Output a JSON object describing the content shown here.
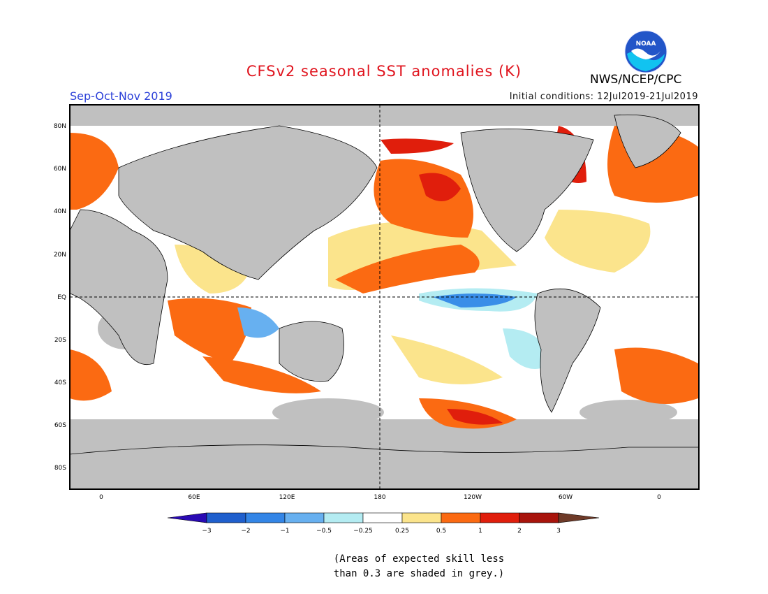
{
  "header": {
    "title": "CFSv2 seasonal SST anomalies (K)",
    "season": "Sep-Oct-Nov 2019",
    "initial_conditions": "Initial conditions: 12Jul2019-21Jul2019",
    "agency": "NWS/NCEP/CPC",
    "logo_text": "NOAA"
  },
  "map": {
    "lat_labels": [
      "80N",
      "60N",
      "40N",
      "20N",
      "EQ",
      "20S",
      "40S",
      "60S",
      "80S"
    ],
    "lon_labels": [
      "0",
      "60E",
      "120E",
      "180",
      "120W",
      "60W",
      "0"
    ],
    "colors": {
      "land": "#c0c0c0",
      "ocean_neutral": "#ffffff",
      "grey_skill": "#c0c0c0",
      "warm_light": "#fbe48c",
      "warm_mid": "#fb6a12",
      "warm_strong": "#e01e0c",
      "cool_light": "#b4ecf2",
      "cool_mid": "#3a8ee8"
    }
  },
  "colorbar": {
    "labels": [
      "−3",
      "−2",
      "−1",
      "−0.5",
      "−0.25",
      "0.25",
      "0.5",
      "1",
      "2",
      "3"
    ],
    "colors": [
      "#2a0ab4",
      "#1f5fcd",
      "#3385e6",
      "#67b0f0",
      "#b4ecf2",
      "#ffffff",
      "#fbe48c",
      "#fb6a12",
      "#e01e0c",
      "#a8140c",
      "#6e3a28"
    ]
  },
  "note": {
    "line1": "(Areas of expected skill less",
    "line2": "than 0.3 are shaded in grey.)"
  }
}
